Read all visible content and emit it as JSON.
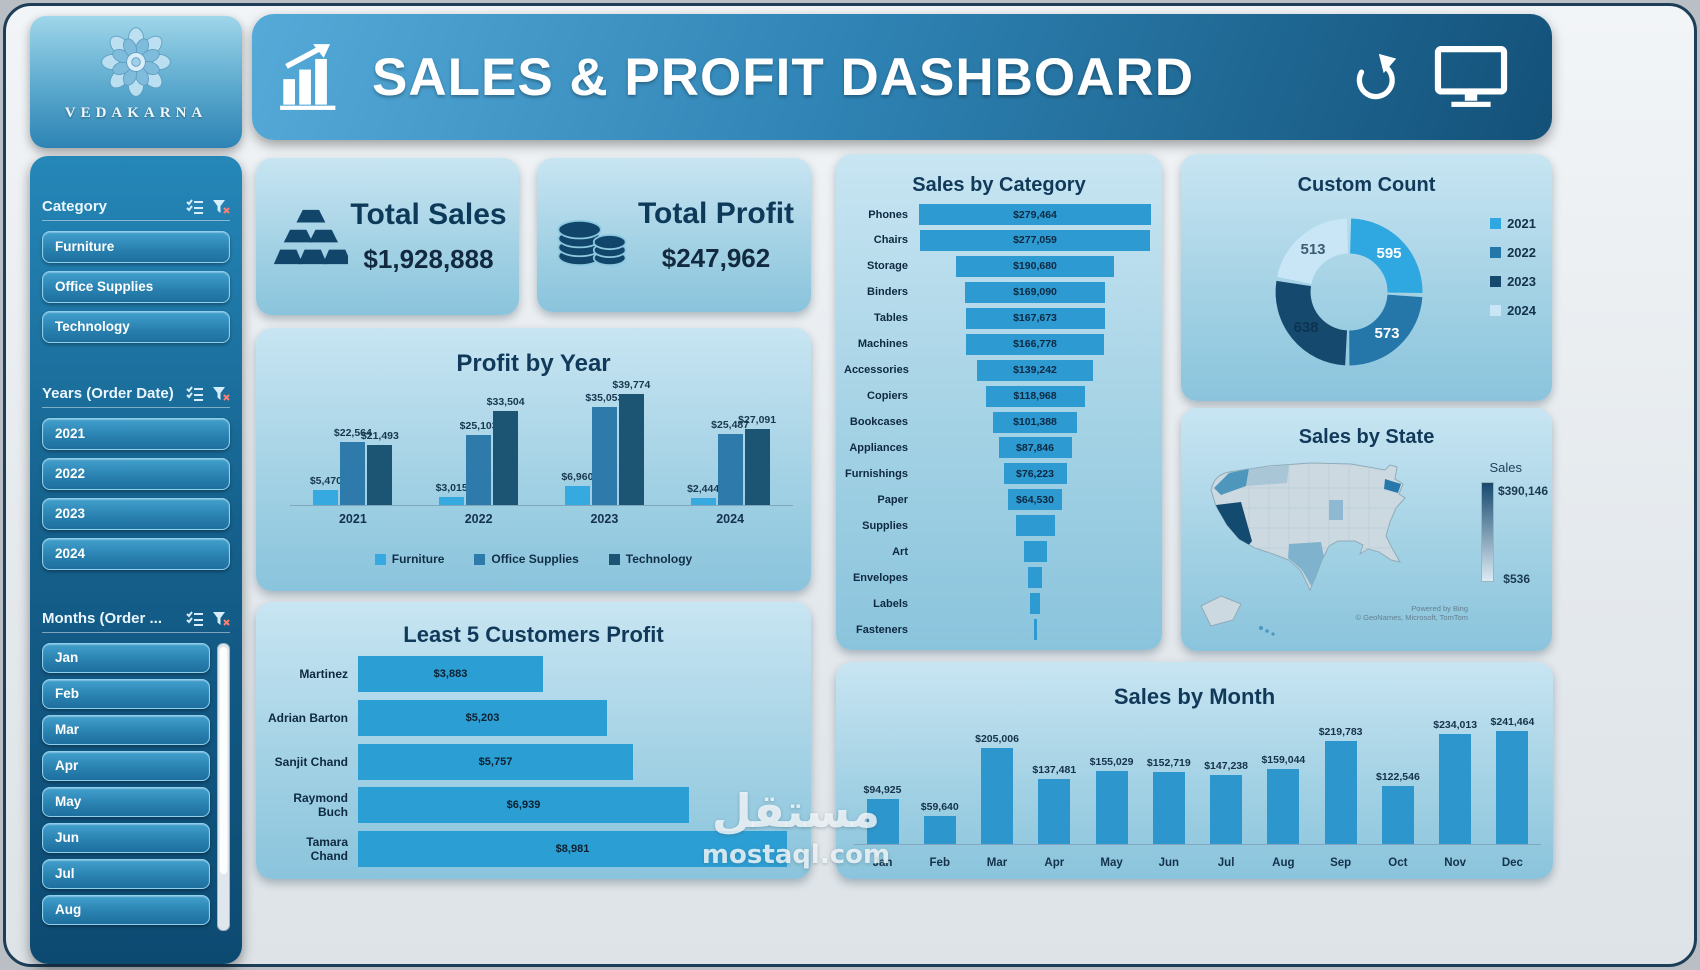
{
  "branding": {
    "logo_text": "VEDAKARNA"
  },
  "header": {
    "title": "SALES & PROFIT DASHBOARD"
  },
  "slicers": {
    "category": {
      "title": "Category",
      "items": [
        "Furniture",
        "Office Supplies",
        "Technology"
      ]
    },
    "years": {
      "title": "Years (Order Date)",
      "items": [
        "2021",
        "2022",
        "2023",
        "2024"
      ]
    },
    "months": {
      "title": "Months (Order ...",
      "items": [
        "Jan",
        "Feb",
        "Mar",
        "Apr",
        "May",
        "Jun",
        "Jul",
        "Aug"
      ],
      "has_scrollbar": true
    }
  },
  "kpis": {
    "total_sales": {
      "title": "Total Sales",
      "value": "$1,928,888",
      "icon": "gold-bars-icon"
    },
    "total_profit": {
      "title": "Total Profit",
      "value": "$247,962",
      "icon": "coins-icon"
    }
  },
  "colors": {
    "series_light": "#35a9e0",
    "series_mid": "#2e7bab",
    "series_dark": "#1c5b84",
    "bar_primary": "#2d99cf",
    "card_text": "#113a5a"
  },
  "chart_data": [
    {
      "type": "bar",
      "title": "Profit by Year",
      "categories": [
        "2021",
        "2022",
        "2023",
        "2024"
      ],
      "series": [
        {
          "name": "Furniture",
          "color": "#35a9e0",
          "values": [
            5470,
            3015,
            6960,
            2444
          ],
          "labels": [
            "$5,470",
            "$3,015",
            "$6,960",
            "$2,444"
          ]
        },
        {
          "name": "Office Supplies",
          "color": "#2e7bab",
          "values": [
            22564,
            25103,
            35053,
            25487
          ],
          "labels": [
            "$22,564",
            "$25,103",
            "$35,053",
            "$25,487"
          ]
        },
        {
          "name": "Technology",
          "color": "#1c5574",
          "values": [
            21493,
            33504,
            39774,
            27091
          ],
          "labels": [
            "$21,493",
            "$33,504",
            "$39,774",
            "$27,091"
          ]
        }
      ],
      "ylim": [
        0,
        40000
      ],
      "legend_position": "bottom"
    },
    {
      "type": "bar-horizontal",
      "title": "Least 5 Customers Profit",
      "categories": [
        "Martinez",
        "Adrian Barton",
        "Sanjit Chand",
        "Raymond Buch",
        "Tamara Chand"
      ],
      "values": [
        3883,
        5203,
        5757,
        6939,
        8981
      ],
      "labels": [
        "$3,883",
        "$5,203",
        "$5,757",
        "$6,939",
        "$8,981"
      ],
      "color": "#2b9fd4",
      "xlim": [
        0,
        9000
      ]
    },
    {
      "type": "funnel",
      "title": "Sales by Category",
      "categories": [
        "Phones",
        "Chairs",
        "Storage",
        "Binders",
        "Tables",
        "Machines",
        "Accessories",
        "Copiers",
        "Bookcases",
        "Appliances",
        "Furnishings",
        "Paper",
        "Supplies",
        "Art",
        "Envelopes",
        "Labels",
        "Fasteners"
      ],
      "values": [
        279464,
        277059,
        190680,
        169090,
        167673,
        166778,
        139242,
        118968,
        101388,
        87846,
        76223,
        64530,
        46674,
        27119,
        16476,
        12486,
        3024
      ],
      "labels": [
        "$279,464",
        "$277,059",
        "$190,680",
        "$169,090",
        "$167,673",
        "$166,778",
        "$139,242",
        "$118,968",
        "$101,388",
        "$87,846",
        "$76,223",
        "$64,530",
        "",
        "",
        "",
        "",
        ""
      ],
      "color": "#2d9bd2"
    },
    {
      "type": "donut",
      "title": "Custom Count",
      "segments": [
        {
          "name": "2021",
          "value": 595,
          "color": "#2fa7e0",
          "label_color": "#ffffff"
        },
        {
          "name": "2022",
          "value": 573,
          "color": "#2577aa",
          "label_color": "#ffffff"
        },
        {
          "name": "2023",
          "value": 638,
          "color": "#16496e",
          "label_color": "#0d3352"
        },
        {
          "name": "2024",
          "value": 513,
          "color": "#c9e6f6",
          "label_color": "#3c5d72"
        }
      ],
      "legend_position": "right"
    },
    {
      "type": "choropleth-map",
      "title": "Sales by State",
      "legend_title": "Sales",
      "max_label": "$390,146",
      "min_label": "$536",
      "gradient": [
        "#17496d",
        "#dcebf4"
      ],
      "attribution": [
        "Powered by Bing",
        "© GeoNames, Microsoft, TomTom"
      ]
    },
    {
      "type": "bar",
      "title": "Sales by Month",
      "categories": [
        "Jan",
        "Feb",
        "Mar",
        "Apr",
        "May",
        "Jun",
        "Jul",
        "Aug",
        "Sep",
        "Oct",
        "Nov",
        "Dec"
      ],
      "values": [
        94925,
        59640,
        205006,
        137481,
        155029,
        152719,
        147238,
        159044,
        219783,
        122546,
        234013,
        241464
      ],
      "labels": [
        "$94,925",
        "$59,640",
        "$205,006",
        "$137,481",
        "$155,029",
        "$152,719",
        "$147,238",
        "$159,044",
        "$219,783",
        "$122,546",
        "$234,013",
        "$241,464"
      ],
      "color": "#2d96cc",
      "ylim": [
        0,
        260000
      ]
    }
  ],
  "watermark": {
    "line1": "مستقل",
    "line2": "mostaql.com"
  }
}
